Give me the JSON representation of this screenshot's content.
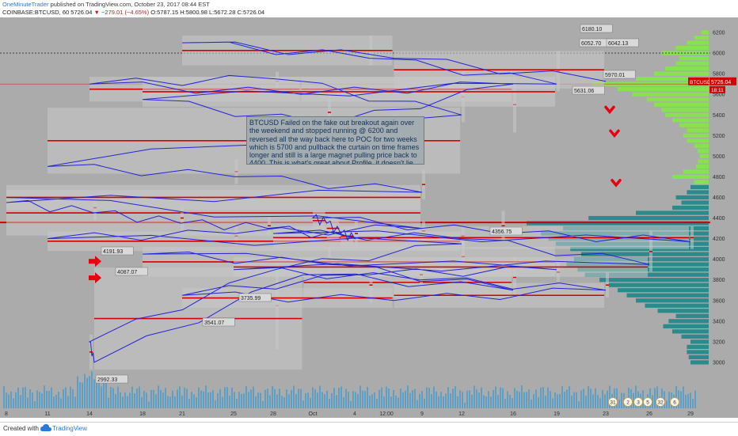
{
  "header": {
    "author": "OneMinuteTrader",
    "published": "published on TradingView.com, October 23, 2017 08:44 EST",
    "symbol": "COINBASE:BTCUSD, 60",
    "last": "5726.04",
    "change": "−279.01 (−4.65%)",
    "ohlc": "O:5787.15 H:5800.98 L:5672.28 C:5726.04"
  },
  "footer": {
    "created_with": "Created with",
    "brand": "TradingView"
  },
  "annotation": "BTCUSD Failed on the fake out breakout again over the weekend and stopped running @ 6200 and reversed all the way back here to POC for two weeks which is 5700 and pullback the curtain on time frames longer and still is a large magnet pulling price back to 4400.  This is what's great about Profile, it doesn't lie.",
  "colors": {
    "background": "#ababab",
    "price_line": "#2323d8",
    "poc_line": "#d40000",
    "profile_teal": "#2a8a8c",
    "profile_green": "#86e24e",
    "arrow": "#e8000f",
    "volume": "#4f9cc9"
  },
  "chart_data": {
    "type": "line",
    "title": "",
    "symbol": "BTCUSD",
    "interval": "60",
    "grid": false,
    "x_ticks": [
      "8",
      "11",
      "14",
      "18",
      "21",
      "25",
      "28",
      "Oct",
      "4",
      "12:00",
      "9",
      "12",
      "16",
      "19",
      "23",
      "26",
      "29"
    ],
    "y_ticks": [
      3000,
      3200,
      3400,
      3600,
      3800,
      4000,
      4200,
      4400,
      4600,
      4800,
      5000,
      5200,
      5400,
      5600,
      5800,
      6000,
      6200
    ],
    "ylim": [
      2800,
      6300
    ],
    "series": [
      {
        "x": [
          "8",
          "9",
          "10",
          "11",
          "12",
          "13",
          "14",
          "14",
          "15",
          "16",
          "17",
          "18",
          "19",
          "20",
          "21",
          "22",
          "23",
          "24",
          "25",
          "26",
          "27",
          "28",
          "29",
          "30",
          "Oct",
          "2",
          "3",
          "4",
          "5",
          "6",
          "7",
          "8",
          "9",
          "10",
          "11",
          "12",
          "13",
          "14",
          "15",
          "16",
          "17",
          "18",
          "19",
          "20",
          "21",
          "22",
          "23"
        ],
        "values": [
          4600,
          4300,
          4250,
          4200,
          4150,
          3900,
          3200,
          3000,
          3850,
          3700,
          3950,
          4050,
          3900,
          3850,
          3650,
          3600,
          3700,
          3800,
          3900,
          3950,
          4200,
          4250,
          4170,
          4250,
          4400,
          4350,
          4250,
          4200,
          4300,
          4350,
          4450,
          4550,
          4650,
          4800,
          4900,
          5400,
          5750,
          5700,
          5600,
          5700,
          5300,
          5550,
          5700,
          5950,
          6100,
          5950,
          5726
        ]
      }
    ],
    "price_labels": [
      4191.93,
      4087.07,
      2992.33,
      3541.07,
      3735.99,
      4356.75,
      5631.06,
      6180.1,
      6052.7,
      6042.13,
      5970.01
    ],
    "last_price": 5726.04,
    "last_label": "BTCUSD",
    "countdown": "18:11",
    "poc_levels": [
      5700,
      4356.75
    ],
    "profile_rows": [
      {
        "price": 3000,
        "len": 0.1,
        "zone": "low"
      },
      {
        "price": 3050,
        "len": 0.11,
        "zone": "low"
      },
      {
        "price": 3100,
        "len": 0.12,
        "zone": "low"
      },
      {
        "price": 3150,
        "len": 0.12,
        "zone": "low"
      },
      {
        "price": 3200,
        "len": 0.1,
        "zone": "low"
      },
      {
        "price": 3250,
        "len": 0.15,
        "zone": "low"
      },
      {
        "price": 3300,
        "len": 0.2,
        "zone": "low"
      },
      {
        "price": 3350,
        "len": 0.25,
        "zone": "low"
      },
      {
        "price": 3400,
        "len": 0.22,
        "zone": "low"
      },
      {
        "price": 3450,
        "len": 0.18,
        "zone": "low"
      },
      {
        "price": 3500,
        "len": 0.28,
        "zone": "low"
      },
      {
        "price": 3550,
        "len": 0.35,
        "zone": "low"
      },
      {
        "price": 3600,
        "len": 0.4,
        "zone": "low"
      },
      {
        "price": 3650,
        "len": 0.45,
        "zone": "low"
      },
      {
        "price": 3700,
        "len": 0.5,
        "zone": "low"
      },
      {
        "price": 3750,
        "len": 0.55,
        "zone": "low"
      },
      {
        "price": 3800,
        "len": 0.6,
        "zone": "low"
      },
      {
        "price": 3850,
        "len": 0.68,
        "zone": "low"
      },
      {
        "price": 3900,
        "len": 0.72,
        "zone": "low"
      },
      {
        "price": 3950,
        "len": 0.78,
        "zone": "low"
      },
      {
        "price": 4000,
        "len": 0.74,
        "zone": "low"
      },
      {
        "price": 4050,
        "len": 0.7,
        "zone": "low"
      },
      {
        "price": 4100,
        "len": 0.76,
        "zone": "low"
      },
      {
        "price": 4150,
        "len": 0.84,
        "zone": "low"
      },
      {
        "price": 4200,
        "len": 0.88,
        "zone": "low"
      },
      {
        "price": 4250,
        "len": 0.92,
        "zone": "low"
      },
      {
        "price": 4300,
        "len": 0.8,
        "zone": "low"
      },
      {
        "price": 4350,
        "len": 1.0,
        "zone": "low"
      },
      {
        "price": 4400,
        "len": 0.66,
        "zone": "low"
      },
      {
        "price": 4450,
        "len": 0.4,
        "zone": "low"
      },
      {
        "price": 4500,
        "len": 0.2,
        "zone": "low"
      },
      {
        "price": 4550,
        "len": 0.15,
        "zone": "low"
      },
      {
        "price": 4600,
        "len": 0.18,
        "zone": "low"
      },
      {
        "price": 4650,
        "len": 0.12,
        "zone": "low"
      },
      {
        "price": 4700,
        "len": 0.1,
        "zone": "low"
      },
      {
        "price": 4750,
        "len": 0.08,
        "zone": "high"
      },
      {
        "price": 4800,
        "len": 0.2,
        "zone": "high"
      },
      {
        "price": 4850,
        "len": 0.14,
        "zone": "high"
      },
      {
        "price": 4900,
        "len": 0.07,
        "zone": "high"
      },
      {
        "price": 4950,
        "len": 0.06,
        "zone": "high"
      },
      {
        "price": 5000,
        "len": 0.05,
        "zone": "high"
      },
      {
        "price": 5050,
        "len": 0.06,
        "zone": "high"
      },
      {
        "price": 5100,
        "len": 0.08,
        "zone": "high"
      },
      {
        "price": 5150,
        "len": 0.12,
        "zone": "high"
      },
      {
        "price": 5200,
        "len": 0.14,
        "zone": "high"
      },
      {
        "price": 5250,
        "len": 0.12,
        "zone": "high"
      },
      {
        "price": 5300,
        "len": 0.16,
        "zone": "high"
      },
      {
        "price": 5350,
        "len": 0.2,
        "zone": "high"
      },
      {
        "price": 5400,
        "len": 0.24,
        "zone": "high"
      },
      {
        "price": 5450,
        "len": 0.26,
        "zone": "high"
      },
      {
        "price": 5500,
        "len": 0.3,
        "zone": "high"
      },
      {
        "price": 5550,
        "len": 0.34,
        "zone": "high"
      },
      {
        "price": 5600,
        "len": 0.42,
        "zone": "high"
      },
      {
        "price": 5650,
        "len": 0.5,
        "zone": "high"
      },
      {
        "price": 5700,
        "len": 0.64,
        "zone": "high"
      },
      {
        "price": 5750,
        "len": 0.4,
        "zone": "high"
      },
      {
        "price": 5800,
        "len": 0.3,
        "zone": "high"
      },
      {
        "price": 5850,
        "len": 0.24,
        "zone": "high"
      },
      {
        "price": 5900,
        "len": 0.18,
        "zone": "high"
      },
      {
        "price": 5950,
        "len": 0.16,
        "zone": "high"
      },
      {
        "price": 6000,
        "len": 0.26,
        "zone": "high"
      },
      {
        "price": 6050,
        "len": 0.18,
        "zone": "high"
      },
      {
        "price": 6100,
        "len": 0.12,
        "zone": "high"
      },
      {
        "price": 6150,
        "len": 0.08,
        "zone": "high"
      },
      {
        "price": 6200,
        "len": 0.04,
        "zone": "high"
      }
    ],
    "reference_levels": [
      6000
    ],
    "arrows": [
      {
        "direction": "right",
        "price": 3980
      },
      {
        "direction": "right",
        "price": 3820
      },
      {
        "direction": "down",
        "price": 5430
      },
      {
        "direction": "down",
        "price": 5200
      },
      {
        "direction": "down",
        "price": 4720
      }
    ],
    "event_badges": [
      "31",
      "2",
      "3",
      "5",
      "32",
      "6"
    ]
  }
}
